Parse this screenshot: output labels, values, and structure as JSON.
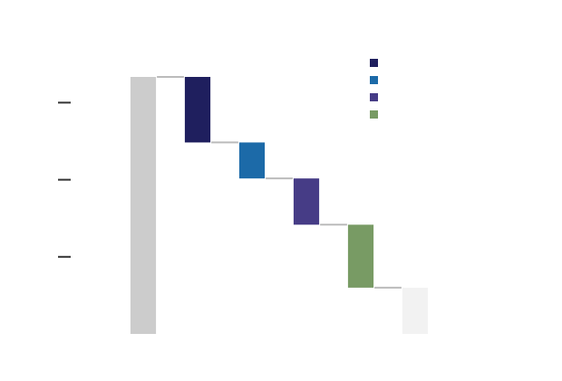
{
  "chart_data": {
    "type": "bar",
    "subtype": "waterfall",
    "title": "",
    "xlabel": "",
    "ylabel": "",
    "ylim": [
      0,
      100
    ],
    "yticks": [
      30,
      60,
      90
    ],
    "grid": false,
    "legend_position": "top-right",
    "steps": [
      {
        "kind": "total",
        "value": 100,
        "color": "#cccccc"
      },
      {
        "kind": "delta",
        "value": -25.5,
        "color": "#1f1f5e"
      },
      {
        "kind": "delta",
        "value": -14,
        "color": "#1c6aa8"
      },
      {
        "kind": "delta",
        "value": -18,
        "color": "#463c86"
      },
      {
        "kind": "delta",
        "value": -24.5,
        "color": "#789b64"
      },
      {
        "kind": "total",
        "value": 18,
        "color": "#f2f2f2"
      }
    ],
    "legend": [
      {
        "color": "#1f1f5e"
      },
      {
        "color": "#1c6aa8"
      },
      {
        "color": "#463c86"
      },
      {
        "color": "#789b64"
      }
    ],
    "connector_color": "#bbbbbb",
    "tick_color": "#333333"
  }
}
